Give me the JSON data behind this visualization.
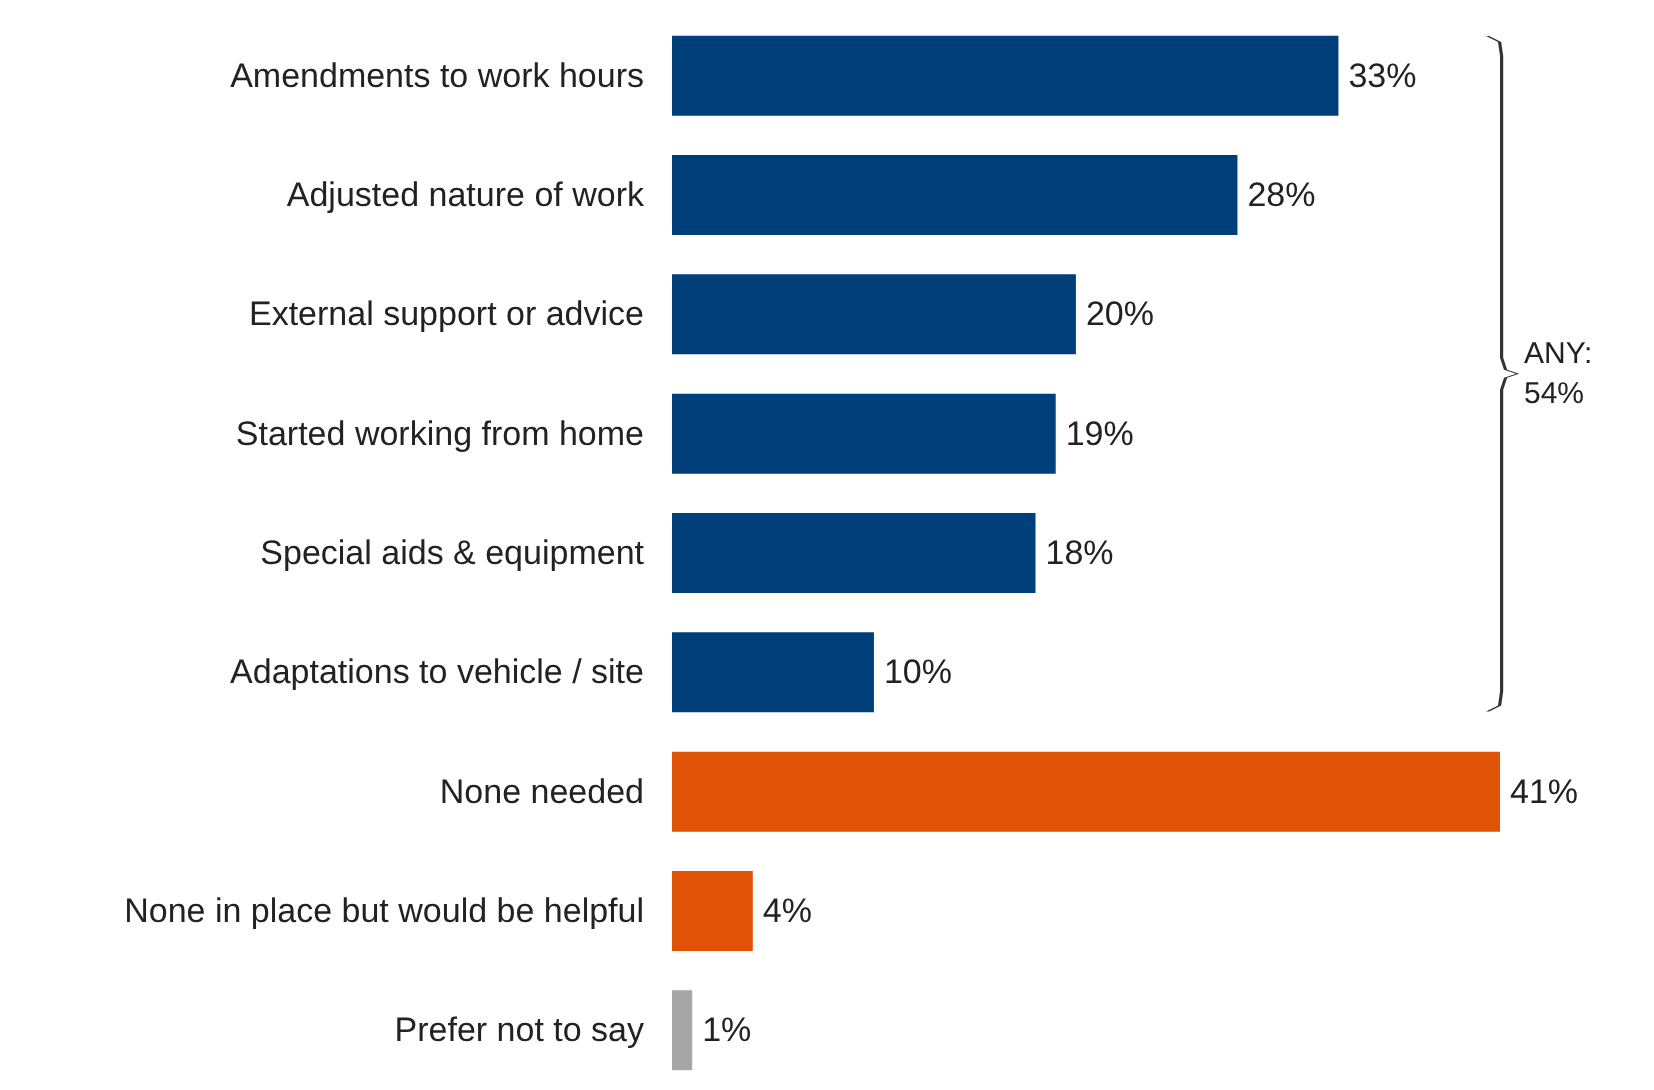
{
  "chart_data": {
    "type": "bar",
    "orientation": "horizontal",
    "categories": [
      "Amendments to work hours",
      "Adjusted nature of work",
      "External support or advice",
      "Started working from home",
      "Special aids & equipment",
      "Adaptations to vehicle / site",
      "None needed",
      "None in place but would be helpful",
      "Prefer not to say"
    ],
    "values": [
      33,
      28,
      20,
      19,
      18,
      10,
      41,
      4,
      1
    ],
    "colors": [
      "#003f7a",
      "#003f7a",
      "#003f7a",
      "#003f7a",
      "#003f7a",
      "#003f7a",
      "#e05206",
      "#e05206",
      "#a6a6a6"
    ],
    "value_labels": [
      "33%",
      "28%",
      "20%",
      "19%",
      "18%",
      "10%",
      "41%",
      "4%",
      "1%"
    ],
    "annotations": [
      "ANY: 54%"
    ]
  }
}
